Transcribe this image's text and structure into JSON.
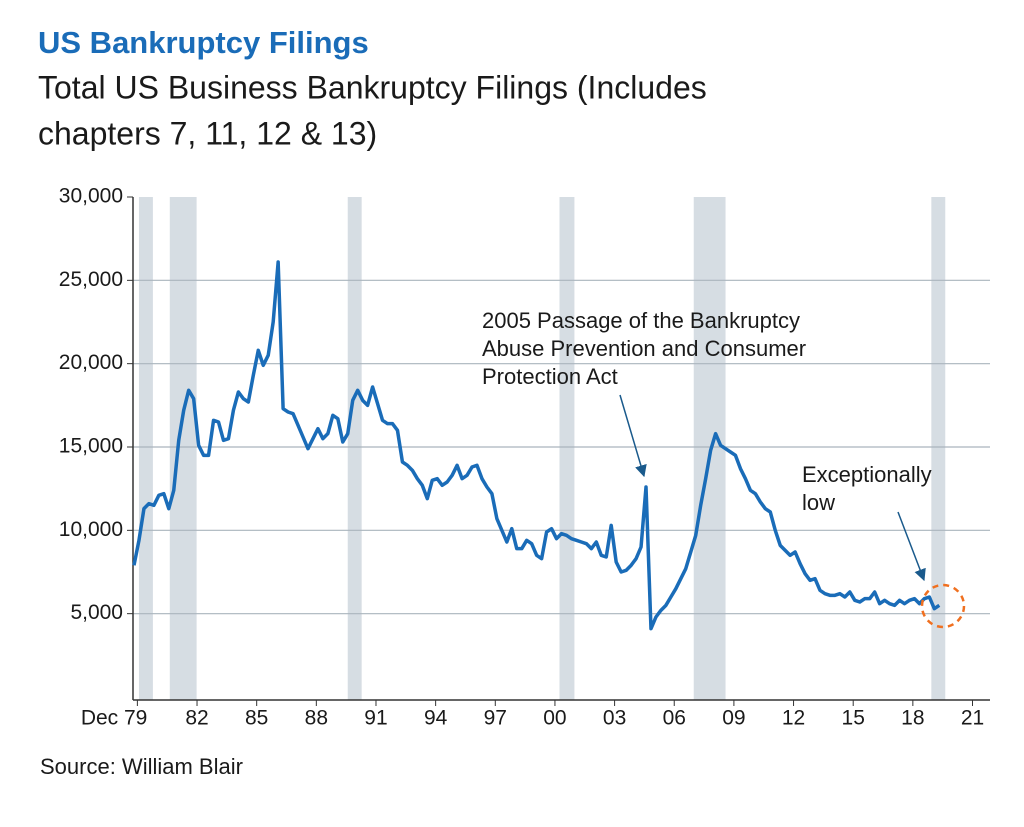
{
  "chart_data": {
    "type": "line",
    "title": "US Bankruptcy Filings",
    "subtitle": [
      "Total US Business Bankruptcy Filings (Includes",
      "chapters 7, 11, 12 & 13)"
    ],
    "source": "Source: William Blair",
    "annotations": [
      {
        "lines": [
          "2005 Passage of the Bankruptcy",
          "Abuse Prevention and Consumer",
          "Protection Act"
        ]
      },
      {
        "lines": [
          "Exceptionally",
          "low"
        ]
      }
    ],
    "xlim": [
      1979.7,
      2022.8
    ],
    "xticks": [
      {
        "value": 1979.92,
        "label": "Dec 79"
      },
      {
        "value": 1982.92,
        "label": "82"
      },
      {
        "value": 1985.92,
        "label": "85"
      },
      {
        "value": 1988.92,
        "label": "88"
      },
      {
        "value": 1991.92,
        "label": "91"
      },
      {
        "value": 1994.92,
        "label": "94"
      },
      {
        "value": 1997.92,
        "label": "97"
      },
      {
        "value": 2000.92,
        "label": "00"
      },
      {
        "value": 2003.92,
        "label": "03"
      },
      {
        "value": 2006.92,
        "label": "06"
      },
      {
        "value": 2009.92,
        "label": "09"
      },
      {
        "value": 2012.92,
        "label": "12"
      },
      {
        "value": 2015.92,
        "label": "15"
      },
      {
        "value": 2018.92,
        "label": "18"
      },
      {
        "value": 2021.92,
        "label": "21"
      }
    ],
    "ylim": [
      0,
      30000
    ],
    "yticks": [
      {
        "value": 5000,
        "label": "5,000"
      },
      {
        "value": 10000,
        "label": "10,000"
      },
      {
        "value": 15000,
        "label": "15,000"
      },
      {
        "value": 20000,
        "label": "20,000"
      },
      {
        "value": 25000,
        "label": "25,000"
      },
      {
        "value": 30000,
        "label": "30,000"
      }
    ],
    "grid": true,
    "recessions": [
      [
        1980.0,
        1980.7
      ],
      [
        1981.55,
        1982.9
      ],
      [
        1990.5,
        1991.2
      ],
      [
        2001.15,
        2001.9
      ],
      [
        2007.9,
        2009.5
      ],
      [
        2019.85,
        2020.55
      ]
    ],
    "recession_color": "#d6dde3",
    "color": "#1a6cb8",
    "x": [
      1979.75,
      1980,
      1980.25,
      1980.5,
      1980.75,
      1981,
      1981.25,
      1981.5,
      1981.75,
      1982,
      1982.25,
      1982.5,
      1982.75,
      1983,
      1983.25,
      1983.5,
      1983.75,
      1984,
      1984.25,
      1984.5,
      1984.75,
      1985,
      1985.25,
      1985.5,
      1985.75,
      1986,
      1986.25,
      1986.5,
      1986.75,
      1987,
      1987.25,
      1987.5,
      1987.75,
      1988,
      1988.25,
      1988.5,
      1988.75,
      1989,
      1989.25,
      1989.5,
      1989.75,
      1990,
      1990.25,
      1990.5,
      1990.75,
      1991,
      1991.25,
      1991.5,
      1991.75,
      1992,
      1992.25,
      1992.5,
      1992.75,
      1993,
      1993.25,
      1993.5,
      1993.75,
      1994,
      1994.25,
      1994.5,
      1994.75,
      1995,
      1995.25,
      1995.5,
      1995.75,
      1996,
      1996.25,
      1996.5,
      1996.75,
      1997,
      1997.25,
      1997.5,
      1997.75,
      1998,
      1998.25,
      1998.5,
      1998.75,
      1999,
      1999.25,
      1999.5,
      1999.75,
      2000,
      2000.25,
      2000.5,
      2000.75,
      2001,
      2001.25,
      2001.5,
      2001.75,
      2002,
      2002.25,
      2002.5,
      2002.75,
      2003,
      2003.25,
      2003.5,
      2003.75,
      2004,
      2004.25,
      2004.5,
      2004.75,
      2005,
      2005.25,
      2005.5,
      2005.75,
      2006,
      2006.25,
      2006.5,
      2006.75,
      2007,
      2007.25,
      2007.5,
      2007.75,
      2008,
      2008.25,
      2008.5,
      2008.75,
      2009,
      2009.25,
      2009.5,
      2009.75,
      2010,
      2010.25,
      2010.5,
      2010.75,
      2011,
      2011.25,
      2011.5,
      2011.75,
      2012,
      2012.25,
      2012.5,
      2012.75,
      2013,
      2013.25,
      2013.5,
      2013.75,
      2014,
      2014.25,
      2014.5,
      2014.75,
      2015,
      2015.25,
      2015.5,
      2015.75,
      2016,
      2016.25,
      2016.5,
      2016.75,
      2017,
      2017.25,
      2017.5,
      2017.75,
      2018,
      2018.25,
      2018.5,
      2018.75,
      2019,
      2019.25,
      2019.5,
      2019.75,
      2020,
      2020.25
    ],
    "values": [
      7900,
      9400,
      11300,
      11600,
      11500,
      12100,
      12200,
      11300,
      12400,
      15400,
      17200,
      18400,
      17900,
      15100,
      14500,
      14500,
      16600,
      16500,
      15400,
      15500,
      17200,
      18300,
      17900,
      17700,
      19300,
      20800,
      19900,
      20500,
      22500,
      26100,
      17300,
      17100,
      17000,
      16300,
      15600,
      14900,
      15500,
      16100,
      15500,
      15800,
      16900,
      16700,
      15300,
      15800,
      17800,
      18400,
      17800,
      17500,
      18600,
      17600,
      16600,
      16400,
      16400,
      16000,
      14100,
      13900,
      13600,
      13100,
      12700,
      11900,
      13000,
      13100,
      12700,
      12900,
      13300,
      13900,
      13100,
      13300,
      13800,
      13900,
      13100,
      12600,
      12200,
      10700,
      10000,
      9300,
      10100,
      8900,
      8900,
      9400,
      9200,
      8500,
      8300,
      9900,
      10100,
      9500,
      9800,
      9700,
      9500,
      9400,
      9300,
      9200,
      8900,
      9300,
      8500,
      8400,
      10300,
      8100,
      7500,
      7600,
      7900,
      8300,
      9000,
      12600,
      4100,
      4800,
      5200,
      5500,
      6000,
      6500,
      7100,
      7700,
      8700,
      9700,
      11500,
      13100,
      14800,
      15800,
      15100,
      14900,
      14700,
      14500,
      13700,
      13100,
      12400,
      12200,
      11700,
      11300,
      11100,
      10000,
      9100,
      8800,
      8500,
      8700,
      8000,
      7400,
      7000,
      7100,
      6400,
      6200,
      6100,
      6100,
      6200,
      6000,
      6300,
      5800,
      5700,
      5900,
      5900,
      6300,
      5600,
      5800,
      5600,
      5500,
      5800,
      5600,
      5800,
      5900,
      5600,
      5900,
      6000,
      5300,
      5500
    ]
  }
}
